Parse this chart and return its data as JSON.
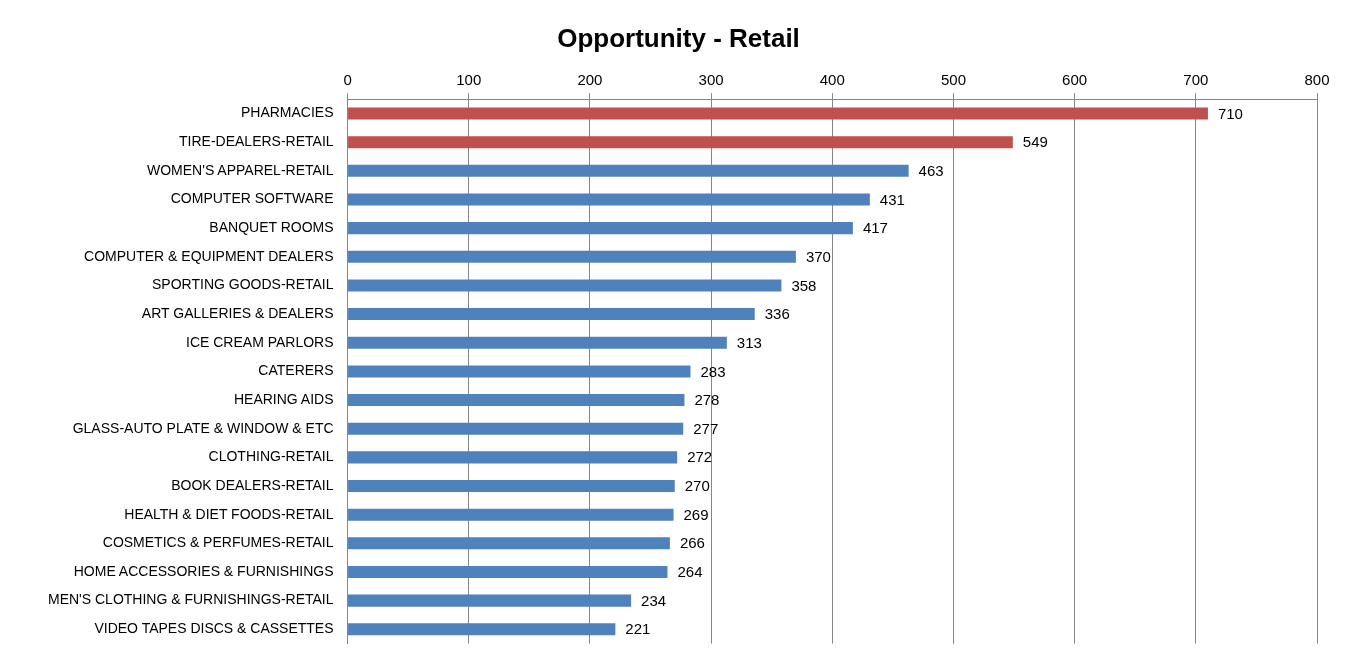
{
  "chart_data": {
    "type": "bar",
    "orientation": "horizontal",
    "title": "Opportunity - Retail",
    "categories": [
      "PHARMACIES",
      "TIRE-DEALERS-RETAIL",
      "WOMEN'S APPAREL-RETAIL",
      "COMPUTER SOFTWARE",
      "BANQUET ROOMS",
      "COMPUTER & EQUIPMENT DEALERS",
      "SPORTING GOODS-RETAIL",
      "ART GALLERIES & DEALERS",
      "ICE CREAM PARLORS",
      "CATERERS",
      "HEARING AIDS",
      "GLASS-AUTO PLATE & WINDOW & ETC",
      "CLOTHING-RETAIL",
      "BOOK DEALERS-RETAIL",
      "HEALTH & DIET FOODS-RETAIL",
      "COSMETICS & PERFUMES-RETAIL",
      "HOME ACCESSORIES & FURNISHINGS",
      "MEN'S CLOTHING & FURNISHINGS-RETAIL",
      "VIDEO TAPES DISCS & CASSETTES"
    ],
    "values": [
      710,
      549,
      463,
      431,
      417,
      370,
      358,
      336,
      313,
      283,
      278,
      277,
      272,
      270,
      269,
      266,
      264,
      234,
      221
    ],
    "colors": [
      "#c0504d",
      "#c0504d",
      "#4f81bd",
      "#4f81bd",
      "#4f81bd",
      "#4f81bd",
      "#4f81bd",
      "#4f81bd",
      "#4f81bd",
      "#4f81bd",
      "#4f81bd",
      "#4f81bd",
      "#4f81bd",
      "#4f81bd",
      "#4f81bd",
      "#4f81bd",
      "#4f81bd",
      "#4f81bd",
      "#4f81bd"
    ],
    "xlim": [
      0,
      800
    ],
    "xticks": [
      0,
      100,
      200,
      300,
      400,
      500,
      600,
      700,
      800
    ],
    "grid": "x",
    "data_labels": true,
    "legend": false
  }
}
